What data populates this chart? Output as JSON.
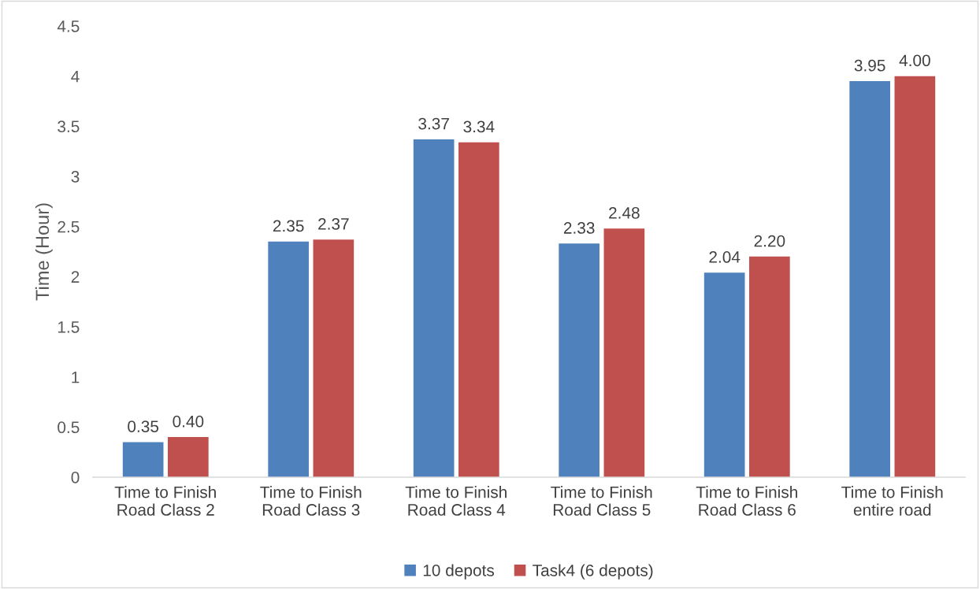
{
  "chart_data": {
    "type": "bar",
    "ylabel": "Time (Hour)",
    "categories": [
      "Time to Finish\nRoad Class 2",
      "Time to Finish\nRoad Class 3",
      "Time to Finish\nRoad Class 4",
      "Time to Finish\nRoad Class 5",
      "Time to Finish\nRoad Class 6",
      "Time to Finish\nentire road"
    ],
    "series": [
      {
        "name": "10 depots",
        "color": "#4f81bd",
        "values": [
          0.35,
          2.35,
          3.37,
          2.33,
          2.04,
          3.95
        ],
        "value_labels": [
          "0.35",
          "2.35",
          "3.37",
          "2.33",
          "2.04",
          "3.95"
        ]
      },
      {
        "name": "Task4 (6 depots)",
        "color": "#c0504d",
        "values": [
          0.4,
          2.37,
          3.34,
          2.48,
          2.2,
          4.0
        ],
        "value_labels": [
          "0.40",
          "2.37",
          "3.34",
          "2.48",
          "2.20",
          "4.00"
        ]
      }
    ],
    "ylim": [
      0,
      4.5
    ],
    "yticks": [
      0,
      0.5,
      1,
      1.5,
      2,
      2.5,
      3,
      3.5,
      4,
      4.5
    ],
    "grid": false,
    "legend": "bottom"
  }
}
